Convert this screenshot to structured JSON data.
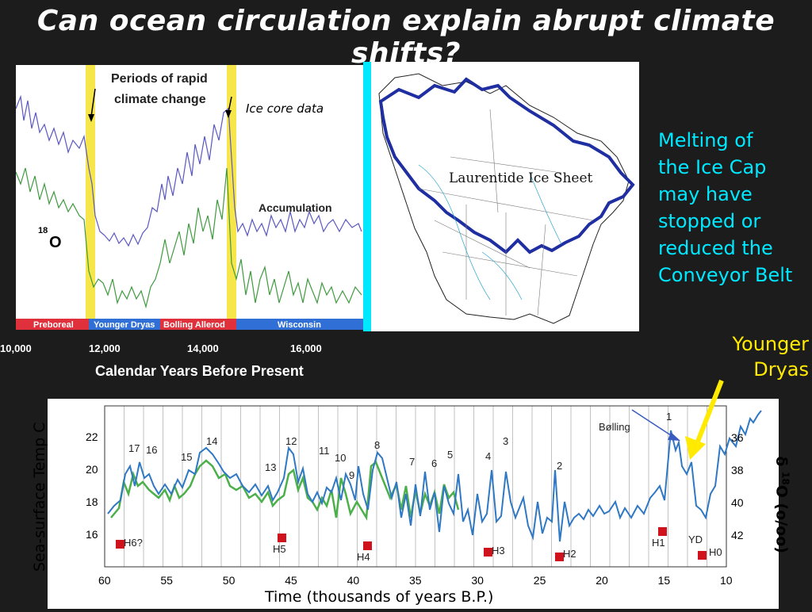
{
  "title": "Can ocean circulation explain abrupt climate shifts?",
  "ice_core": {
    "periods_label_line1": "Periods of rapid",
    "periods_label_line2": "climate change",
    "ice_core_label": "Ice core data",
    "accumulation_label": "Accumulation",
    "o18_super": "18",
    "o18_main": "O",
    "bands": [
      "Preboreal",
      "Younger Dryas",
      "Bolling Allerod",
      "Wisconsin"
    ],
    "band_colors": [
      "#e0303c",
      "#2f6fd6",
      "#e0303c",
      "#2f6fd6"
    ],
    "ticks": [
      "10,000",
      "12,000",
      "14,000",
      "16,000"
    ],
    "xlabel": "Calendar Years Before Present"
  },
  "map": {
    "label": "Laurentide Ice Sheet"
  },
  "note": [
    "Melting of",
    "the Ice Cap",
    "may have",
    "stopped or",
    "reduced the",
    "Conveyor Belt"
  ],
  "younger_dryas_callout": [
    "Younger",
    "Dryas"
  ],
  "bottom_chart": {
    "ylabel_left": "Sea-surface Temp C",
    "ylabel_right_delta": "δ",
    "ylabel_right_super": "18",
    "ylabel_right_main": "O (o/oo)",
    "xlabel": "Time (thousands of years B.P.)",
    "x_ticks": [
      "60",
      "55",
      "50",
      "45",
      "40",
      "35",
      "30",
      "25",
      "20",
      "15",
      "10"
    ],
    "y_left_ticks": [
      "22",
      "20",
      "18",
      "16"
    ],
    "y_right_ticks": [
      "36",
      "38",
      "40",
      "42"
    ],
    "bolling_label": "Bølling",
    "event_numbers": [
      "17",
      "16",
      "15",
      "14",
      "13",
      "12",
      "11",
      "10",
      "9",
      "8",
      "7",
      "6",
      "5",
      "4",
      "3",
      "2",
      "1"
    ],
    "heinrich": [
      "H6?",
      "H5",
      "H4",
      "H3",
      "H2",
      "H1",
      "YD",
      "H0"
    ],
    "colors": {
      "blue": "#2f78c4",
      "green": "#4cb04a",
      "marker": "#d0121c"
    }
  }
}
